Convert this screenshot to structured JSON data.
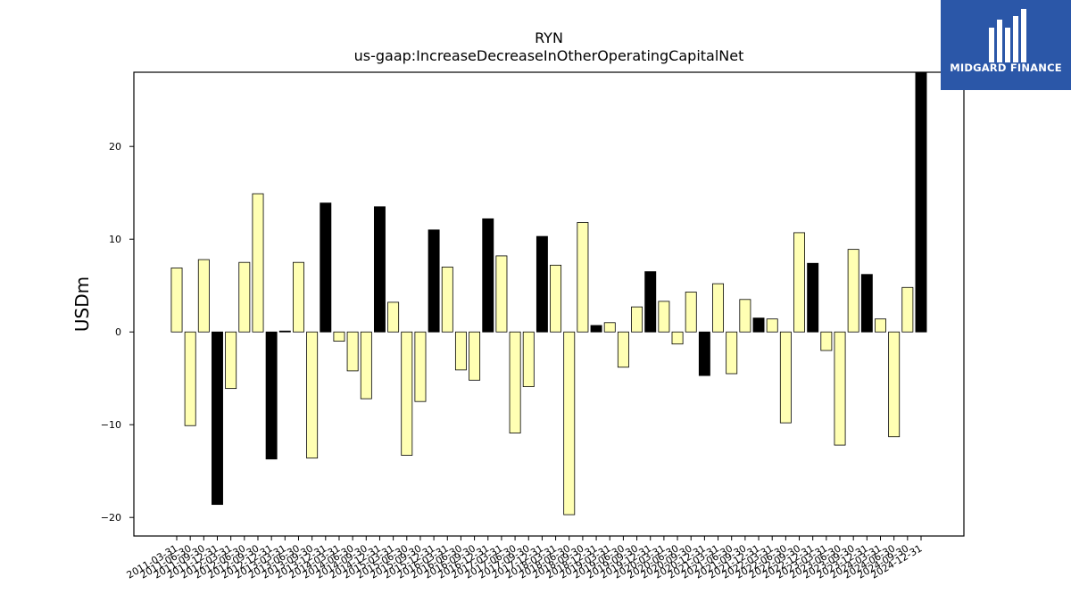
{
  "logo": {
    "text": "MIDGARD FINANCE",
    "background": "#2b57a8"
  },
  "chart_data": {
    "type": "bar",
    "title": "RYN",
    "subtitle": "us-gaap:IncreaseDecreaseInOtherOperatingCapitalNet",
    "ylabel": "USDm",
    "xlabel": "",
    "ylim": [
      -22,
      28
    ],
    "yticks": [
      -20,
      -10,
      0,
      10,
      20
    ],
    "grid": false,
    "colors": {
      "highlight": "#000000",
      "normal": "#ffffb3",
      "edge": "#000000"
    },
    "categories": [
      "2011-03-31",
      "2011-06-30",
      "2011-09-30",
      "2011-12-31",
      "2012-03-31",
      "2012-06-30",
      "2012-09-30",
      "2012-12-31",
      "2013-03-31",
      "2013-06-30",
      "2013-09-30",
      "2013-12-31",
      "2014-03-31",
      "2014-06-30",
      "2014-09-30",
      "2014-12-31",
      "2015-03-31",
      "2015-06-30",
      "2015-09-30",
      "2015-12-31",
      "2016-03-31",
      "2016-06-30",
      "2016-09-30",
      "2016-12-31",
      "2017-03-31",
      "2017-06-30",
      "2017-09-30",
      "2017-12-31",
      "2018-03-31",
      "2018-06-30",
      "2018-09-30",
      "2018-12-31",
      "2019-03-31",
      "2019-06-30",
      "2019-09-30",
      "2019-12-31",
      "2020-03-31",
      "2020-06-30",
      "2020-09-30",
      "2020-12-31",
      "2021-03-31",
      "2021-06-30",
      "2021-09-30",
      "2021-12-31",
      "2022-03-31",
      "2022-06-30",
      "2022-09-30",
      "2022-12-31",
      "2023-03-31",
      "2023-06-30",
      "2023-09-30",
      "2023-12-31",
      "2024-03-31",
      "2024-06-30",
      "2024-09-30",
      "2024-12-31"
    ],
    "values": [
      6.9,
      -10.1,
      7.8,
      -18.6,
      -6.1,
      7.5,
      14.9,
      -13.7,
      0.1,
      7.5,
      -13.6,
      13.9,
      -1.0,
      -4.2,
      -7.2,
      13.5,
      3.2,
      -13.3,
      -7.5,
      11.0,
      7.0,
      -4.1,
      -5.2,
      12.2,
      8.2,
      -10.9,
      -5.9,
      10.3,
      7.2,
      -19.7,
      11.8,
      0.7,
      1.0,
      -3.8,
      2.7,
      6.5,
      3.3,
      -1.3,
      4.3,
      -4.7,
      5.2,
      -4.5,
      3.5,
      1.5,
      1.4,
      -9.8,
      10.7,
      7.4,
      -2.0,
      -12.2,
      8.9,
      6.2,
      1.4,
      -11.3,
      4.8,
      28.0
    ],
    "highlight": [
      false,
      false,
      false,
      true,
      false,
      false,
      false,
      true,
      true,
      false,
      false,
      true,
      false,
      false,
      false,
      true,
      false,
      false,
      false,
      true,
      false,
      false,
      false,
      true,
      false,
      false,
      false,
      true,
      false,
      false,
      false,
      true,
      false,
      false,
      false,
      true,
      false,
      false,
      false,
      true,
      false,
      false,
      false,
      true,
      false,
      false,
      false,
      true,
      false,
      false,
      false,
      true,
      false,
      false,
      false,
      true
    ]
  }
}
